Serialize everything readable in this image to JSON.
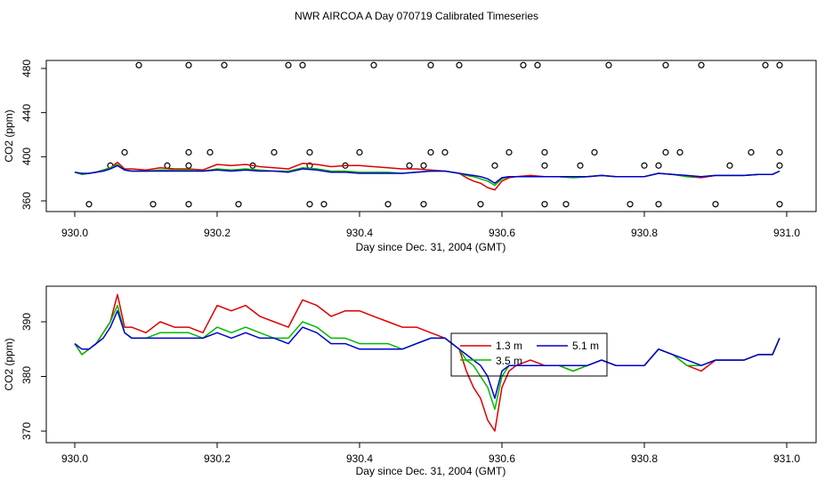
{
  "title": "NWR AIRCOA A  Day 070719  Calibrated Timeseries",
  "colors": {
    "red": "#dd0000",
    "green": "#00bb00",
    "blue": "#0000cc",
    "axis": "#000000"
  },
  "chart_data": [
    {
      "type": "line",
      "xlabel": "Day since Dec. 31, 2004 (GMT)",
      "ylabel": "CO2 (ppm)",
      "xlim": [
        930.0,
        931.0
      ],
      "ylim": [
        355,
        487
      ],
      "xticks": [
        "930.0",
        "930.2",
        "930.4",
        "930.6",
        "930.8",
        "931.0"
      ],
      "yticks": [
        "360",
        "400",
        "440",
        "480"
      ],
      "x": [
        930.0,
        930.01,
        930.02,
        930.03,
        930.04,
        930.05,
        930.06,
        930.07,
        930.08,
        930.1,
        930.12,
        930.14,
        930.16,
        930.18,
        930.2,
        930.22,
        930.24,
        930.26,
        930.28,
        930.3,
        930.32,
        930.34,
        930.36,
        930.38,
        930.4,
        930.42,
        930.44,
        930.46,
        930.48,
        930.5,
        930.52,
        930.54,
        930.55,
        930.56,
        930.57,
        930.58,
        930.59,
        930.6,
        930.61,
        930.62,
        930.64,
        930.66,
        930.68,
        930.7,
        930.72,
        930.74,
        930.76,
        930.78,
        930.8,
        930.82,
        930.84,
        930.86,
        930.88,
        930.9,
        930.92,
        930.94,
        930.96,
        930.98,
        930.99
      ],
      "series": [
        {
          "name": "1.3 m",
          "color": "red",
          "values": [
            386,
            384,
            385,
            386,
            388,
            390,
            395,
            389,
            389,
            388,
            390,
            389,
            389,
            388,
            393,
            392,
            393,
            391,
            390,
            389,
            394,
            393,
            391,
            392,
            392,
            391,
            390,
            389,
            389,
            388,
            387,
            385,
            381,
            378,
            376,
            372,
            370,
            378,
            381,
            382,
            383,
            382,
            382,
            381,
            382,
            383,
            382,
            382,
            382,
            385,
            384,
            382,
            381,
            383,
            383,
            383,
            384,
            384,
            387
          ]
        },
        {
          "name": "3.5 m",
          "color": "green",
          "values": [
            386,
            384,
            385,
            386,
            388,
            390,
            393,
            388,
            387,
            387,
            388,
            388,
            388,
            387,
            389,
            388,
            389,
            388,
            387,
            387,
            390,
            389,
            387,
            387,
            386,
            386,
            386,
            385,
            386,
            387,
            387,
            385,
            383,
            382,
            380,
            378,
            374,
            380,
            382,
            382,
            382,
            382,
            382,
            381,
            382,
            383,
            382,
            382,
            382,
            385,
            384,
            382,
            382,
            383,
            383,
            383,
            384,
            384,
            387
          ]
        },
        {
          "name": "5.1 m",
          "color": "blue",
          "values": [
            386,
            385,
            385,
            386,
            387,
            389,
            392,
            388,
            387,
            387,
            387,
            387,
            387,
            387,
            388,
            387,
            388,
            387,
            387,
            386,
            389,
            388,
            386,
            386,
            385,
            385,
            385,
            385,
            386,
            387,
            387,
            385,
            384,
            383,
            382,
            380,
            376,
            381,
            382,
            382,
            382,
            382,
            382,
            382,
            382,
            383,
            382,
            382,
            382,
            385,
            384,
            383,
            382,
            383,
            383,
            383,
            384,
            384,
            387
          ]
        }
      ],
      "outliers": {
        "x": [
          930.09,
          930.16,
          930.21,
          930.3,
          930.32,
          930.42,
          930.5,
          930.54,
          930.63,
          930.65,
          930.75,
          930.83,
          930.88,
          930.97,
          930.99,
          930.07,
          930.16,
          930.19,
          930.28,
          930.33,
          930.4,
          930.5,
          930.52,
          930.61,
          930.66,
          930.73,
          930.83,
          930.85,
          930.95,
          930.99,
          930.05,
          930.13,
          930.16,
          930.25,
          930.33,
          930.38,
          930.47,
          930.49,
          930.59,
          930.66,
          930.71,
          930.8,
          930.82,
          930.92,
          930.99,
          930.02,
          930.11,
          930.16,
          930.23,
          930.33,
          930.35,
          930.44,
          930.49,
          930.57,
          930.66,
          930.69,
          930.78,
          930.82,
          930.9,
          930.99
        ],
        "y": [
          483,
          483,
          483,
          483,
          483,
          483,
          483,
          483,
          483,
          483,
          483,
          483,
          483,
          483,
          483,
          404,
          404,
          404,
          404,
          404,
          404,
          404,
          404,
          404,
          404,
          404,
          404,
          404,
          404,
          404,
          392,
          392,
          392,
          392,
          392,
          392,
          392,
          392,
          392,
          392,
          392,
          392,
          392,
          392,
          392,
          357,
          357,
          357,
          357,
          357,
          357,
          357,
          357,
          357,
          357,
          357,
          357,
          357,
          357,
          357
        ]
      }
    },
    {
      "type": "line",
      "xlabel": "Day since Dec. 31, 2004 (GMT)",
      "ylabel": "CO2 (ppm)",
      "xlim": [
        930.0,
        931.0
      ],
      "ylim": [
        369,
        396
      ],
      "xticks": [
        "930.0",
        "930.2",
        "930.4",
        "930.6",
        "930.8",
        "931.0"
      ],
      "yticks": [
        "370",
        "380",
        "390"
      ],
      "legend": {
        "placement": "center",
        "entries": [
          "1.3 m",
          "3.5 m",
          "5.1 m"
        ]
      },
      "x": [
        930.0,
        930.01,
        930.02,
        930.03,
        930.04,
        930.05,
        930.06,
        930.07,
        930.08,
        930.1,
        930.12,
        930.14,
        930.16,
        930.18,
        930.2,
        930.22,
        930.24,
        930.26,
        930.28,
        930.3,
        930.32,
        930.34,
        930.36,
        930.38,
        930.4,
        930.42,
        930.44,
        930.46,
        930.48,
        930.5,
        930.52,
        930.54,
        930.55,
        930.56,
        930.57,
        930.58,
        930.59,
        930.6,
        930.61,
        930.62,
        930.64,
        930.66,
        930.68,
        930.7,
        930.72,
        930.74,
        930.76,
        930.78,
        930.8,
        930.82,
        930.84,
        930.86,
        930.88,
        930.9,
        930.92,
        930.94,
        930.96,
        930.98,
        930.99
      ],
      "series": [
        {
          "name": "1.3 m",
          "color": "red",
          "values": [
            386,
            384,
            385,
            386,
            388,
            390,
            395,
            389,
            389,
            388,
            390,
            389,
            389,
            388,
            393,
            392,
            393,
            391,
            390,
            389,
            394,
            393,
            391,
            392,
            392,
            391,
            390,
            389,
            389,
            388,
            387,
            385,
            381,
            378,
            376,
            372,
            370,
            378,
            381,
            382,
            383,
            382,
            382,
            381,
            382,
            383,
            382,
            382,
            382,
            385,
            384,
            382,
            381,
            383,
            383,
            383,
            384,
            384,
            387
          ]
        },
        {
          "name": "3.5 m",
          "color": "green",
          "values": [
            386,
            384,
            385,
            386,
            388,
            390,
            393,
            388,
            387,
            387,
            388,
            388,
            388,
            387,
            389,
            388,
            389,
            388,
            387,
            387,
            390,
            389,
            387,
            387,
            386,
            386,
            386,
            385,
            386,
            387,
            387,
            385,
            383,
            382,
            380,
            378,
            374,
            380,
            382,
            382,
            382,
            382,
            382,
            381,
            382,
            383,
            382,
            382,
            382,
            385,
            384,
            382,
            382,
            383,
            383,
            383,
            384,
            384,
            387
          ]
        },
        {
          "name": "5.1 m",
          "color": "blue",
          "values": [
            386,
            385,
            385,
            386,
            387,
            389,
            392,
            388,
            387,
            387,
            387,
            387,
            387,
            387,
            388,
            387,
            388,
            387,
            387,
            386,
            389,
            388,
            386,
            386,
            385,
            385,
            385,
            385,
            386,
            387,
            387,
            385,
            384,
            383,
            382,
            380,
            376,
            381,
            382,
            382,
            382,
            382,
            382,
            382,
            382,
            383,
            382,
            382,
            382,
            385,
            384,
            383,
            382,
            383,
            383,
            383,
            384,
            384,
            387
          ]
        }
      ]
    }
  ]
}
